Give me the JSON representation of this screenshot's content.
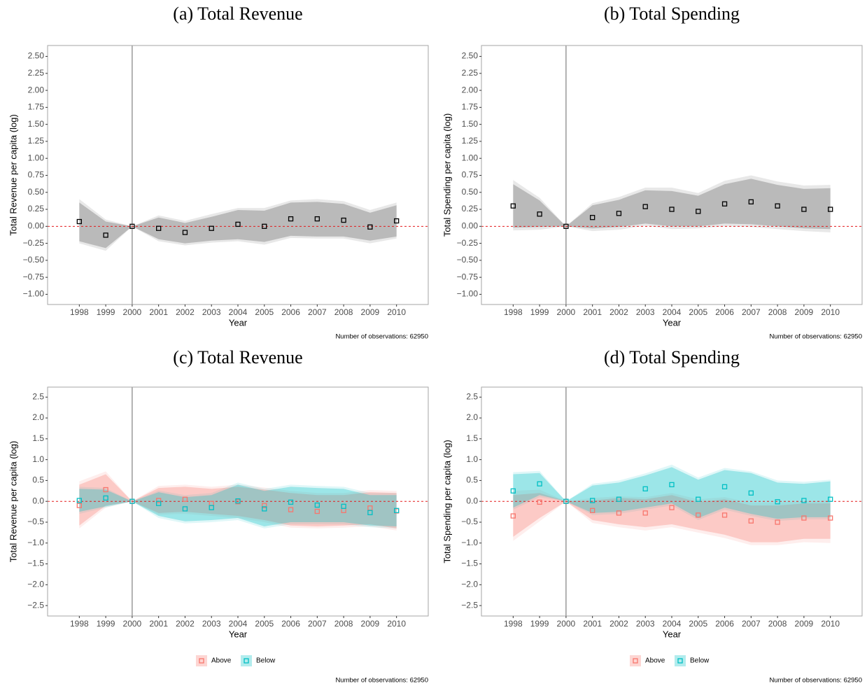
{
  "chart_data": [
    {
      "type": "scatter",
      "title": "(a) Total Revenue",
      "xlabel": "Year",
      "ylabel": "Total Revenue per capita (log)",
      "note": "Number of observations: 62950",
      "x": [
        1998,
        1999,
        2000,
        2001,
        2002,
        2003,
        2004,
        2005,
        2006,
        2007,
        2008,
        2009,
        2010
      ],
      "xlim": [
        1996.8,
        2011.2
      ],
      "xticks": [
        1998,
        1999,
        2000,
        2001,
        2002,
        2003,
        2004,
        2005,
        2006,
        2007,
        2008,
        2009,
        2010
      ],
      "ylim": [
        -1.15,
        2.66
      ],
      "yticks": [
        {
          "value": -1,
          "label": "−1.00"
        },
        {
          "value": -0.75,
          "label": "−0.75"
        },
        {
          "value": -0.5,
          "label": "−0.50"
        },
        {
          "value": -0.25,
          "label": "−0.25"
        },
        {
          "value": 0,
          "label": "0.00"
        },
        0.25,
        {
          "value": 0.5,
          "label": "0.50"
        },
        0.75,
        {
          "value": 1,
          "label": "1.00"
        },
        1.25,
        {
          "value": 1.5,
          "label": "1.50"
        },
        1.75,
        {
          "value": 2,
          "label": "2.00"
        },
        2.25,
        {
          "value": 2.5,
          "label": "2.50"
        }
      ],
      "vline": 2000,
      "hline": 0,
      "series": [
        {
          "color": "#000000",
          "fill": "#8c8c8c",
          "values": [
            0.07,
            -0.13,
            0,
            -0.03,
            -0.09,
            -0.03,
            0.03,
            0.0,
            0.11,
            0.11,
            0.09,
            -0.01,
            0.08
          ],
          "ci_low": [
            -0.22,
            -0.32,
            0,
            -0.19,
            -0.25,
            -0.21,
            -0.19,
            -0.23,
            -0.14,
            -0.15,
            -0.15,
            -0.21,
            -0.15
          ],
          "ci_high": [
            0.35,
            0.07,
            0,
            0.13,
            0.05,
            0.14,
            0.24,
            0.23,
            0.35,
            0.36,
            0.33,
            0.2,
            0.31
          ],
          "ci2_low": [
            -0.25,
            -0.36,
            0,
            -0.22,
            -0.28,
            -0.24,
            -0.22,
            -0.27,
            -0.17,
            -0.18,
            -0.18,
            -0.25,
            -0.18
          ],
          "ci2_high": [
            0.4,
            0.1,
            0,
            0.16,
            0.08,
            0.18,
            0.27,
            0.27,
            0.38,
            0.4,
            0.37,
            0.24,
            0.35
          ]
        }
      ]
    },
    {
      "type": "scatter",
      "title": "(b) Total Spending",
      "xlabel": "Year",
      "ylabel": "Total Spending per capita (log)",
      "note": "Number of observations: 62950",
      "x": [
        1998,
        1999,
        2000,
        2001,
        2002,
        2003,
        2004,
        2005,
        2006,
        2007,
        2008,
        2009,
        2010
      ],
      "xlim": [
        1996.8,
        2011.2
      ],
      "xticks": [
        1998,
        1999,
        2000,
        2001,
        2002,
        2003,
        2004,
        2005,
        2006,
        2007,
        2008,
        2009,
        2010
      ],
      "ylim": [
        -1.15,
        2.66
      ],
      "yticks": [
        {
          "value": -1,
          "label": "−1.00"
        },
        {
          "value": -0.75,
          "label": "−0.75"
        },
        {
          "value": -0.5,
          "label": "−0.50"
        },
        {
          "value": -0.25,
          "label": "−0.25"
        },
        {
          "value": 0,
          "label": "0.00"
        },
        0.25,
        {
          "value": 0.5,
          "label": "0.50"
        },
        0.75,
        {
          "value": 1,
          "label": "1.00"
        },
        1.25,
        {
          "value": 1.5,
          "label": "1.50"
        },
        1.75,
        {
          "value": 2,
          "label": "2.00"
        },
        2.25,
        {
          "value": 2.5,
          "label": "2.50"
        }
      ],
      "vline": 2000,
      "hline": 0,
      "series": [
        {
          "color": "#000000",
          "fill": "#8c8c8c",
          "values": [
            0.3,
            0.18,
            0,
            0.13,
            0.19,
            0.29,
            0.25,
            0.22,
            0.33,
            0.36,
            0.3,
            0.25,
            0.25
          ],
          "ci_low": [
            -0.02,
            -0.01,
            0,
            -0.03,
            -0.01,
            0.04,
            0.0,
            0.0,
            0.04,
            0.03,
            0.0,
            -0.03,
            -0.04
          ],
          "ci_high": [
            0.62,
            0.38,
            0,
            0.31,
            0.39,
            0.53,
            0.52,
            0.45,
            0.62,
            0.7,
            0.61,
            0.55,
            0.56
          ],
          "ci2_low": [
            -0.06,
            -0.05,
            0,
            -0.07,
            -0.05,
            0.01,
            -0.04,
            -0.03,
            0.0,
            -0.01,
            -0.04,
            -0.07,
            -0.09
          ],
          "ci2_high": [
            0.68,
            0.42,
            0,
            0.34,
            0.43,
            0.57,
            0.57,
            0.49,
            0.67,
            0.75,
            0.66,
            0.6,
            0.61
          ]
        }
      ]
    },
    {
      "type": "scatter",
      "title": "(c) Total Revenue",
      "xlabel": "Year",
      "ylabel": "Total Revenue per capita (log)",
      "note": "Number of observations: 62950",
      "x": [
        1998,
        1999,
        2000,
        2001,
        2002,
        2003,
        2004,
        2005,
        2006,
        2007,
        2008,
        2009,
        2010
      ],
      "xlim": [
        1996.8,
        2011.2
      ],
      "xticks": [
        1998,
        1999,
        2000,
        2001,
        2002,
        2003,
        2004,
        2005,
        2006,
        2007,
        2008,
        2009,
        2010
      ],
      "ylim": [
        -2.75,
        2.74
      ],
      "yticks": [
        {
          "value": -2.5,
          "label": "−2.5"
        },
        {
          "value": -2,
          "label": "−2.0"
        },
        {
          "value": -1.5,
          "label": "−1.5"
        },
        {
          "value": -1,
          "label": "−1.0"
        },
        {
          "value": -0.5,
          "label": "−0.5"
        },
        {
          "value": 0,
          "label": "0.0"
        },
        0.5,
        {
          "value": 1,
          "label": "1.0"
        },
        1.5,
        {
          "value": 2,
          "label": "2.0"
        },
        2.5
      ],
      "vline": 2000,
      "hline": 0,
      "legend": "bottom",
      "series": [
        {
          "name": "Above",
          "color": "#F8766D",
          "fill": "#F8766D",
          "values": [
            -0.1,
            0.28,
            0,
            0.02,
            0.05,
            -0.05,
            -0.01,
            -0.1,
            -0.2,
            -0.24,
            -0.22,
            -0.16,
            -0.23
          ],
          "ci_low": [
            -0.58,
            -0.1,
            0,
            -0.28,
            -0.25,
            -0.3,
            -0.35,
            -0.45,
            -0.58,
            -0.6,
            -0.58,
            -0.55,
            -0.65
          ],
          "ci_high": [
            0.4,
            0.65,
            0,
            0.32,
            0.35,
            0.3,
            0.35,
            0.28,
            0.2,
            0.15,
            0.15,
            0.22,
            0.2
          ],
          "ci2_low": [
            -0.65,
            -0.15,
            0,
            -0.32,
            -0.3,
            -0.35,
            -0.4,
            -0.5,
            -0.63,
            -0.65,
            -0.63,
            -0.6,
            -0.7
          ],
          "ci2_high": [
            0.48,
            0.72,
            0,
            0.37,
            0.4,
            0.35,
            0.4,
            0.33,
            0.25,
            0.2,
            0.2,
            0.27,
            0.25
          ]
        },
        {
          "name": "Below",
          "color": "#00BFC4",
          "fill": "#00BFC4",
          "values": [
            0.02,
            0.08,
            0,
            -0.05,
            -0.18,
            -0.15,
            0.01,
            -0.18,
            -0.02,
            -0.09,
            -0.12,
            -0.27,
            -0.22
          ],
          "ci_low": [
            -0.25,
            -0.12,
            0,
            -0.35,
            -0.48,
            -0.45,
            -0.4,
            -0.6,
            -0.5,
            -0.5,
            -0.5,
            -0.58,
            -0.6
          ],
          "ci_high": [
            0.3,
            0.28,
            0,
            0.22,
            0.1,
            0.15,
            0.4,
            0.25,
            0.35,
            0.32,
            0.3,
            0.15,
            0.15
          ],
          "ci2_low": [
            -0.3,
            -0.15,
            0,
            -0.4,
            -0.53,
            -0.5,
            -0.45,
            -0.65,
            -0.55,
            -0.55,
            -0.55,
            -0.62,
            -0.65
          ],
          "ci2_high": [
            0.35,
            0.32,
            0,
            0.26,
            0.15,
            0.2,
            0.45,
            0.3,
            0.4,
            0.37,
            0.35,
            0.2,
            0.2
          ]
        }
      ]
    },
    {
      "type": "scatter",
      "title": "(d) Total Spending",
      "xlabel": "Year",
      "ylabel": "Total Spending per capita (log)",
      "note": "Number of observations: 62950",
      "x": [
        1998,
        1999,
        2000,
        2001,
        2002,
        2003,
        2004,
        2005,
        2006,
        2007,
        2008,
        2009,
        2010
      ],
      "xlim": [
        1996.8,
        2011.2
      ],
      "xticks": [
        1998,
        1999,
        2000,
        2001,
        2002,
        2003,
        2004,
        2005,
        2006,
        2007,
        2008,
        2009,
        2010
      ],
      "ylim": [
        -2.75,
        2.74
      ],
      "yticks": [
        {
          "value": -2.5,
          "label": "−2.5"
        },
        {
          "value": -2,
          "label": "−2.0"
        },
        {
          "value": -1.5,
          "label": "−1.5"
        },
        {
          "value": -1,
          "label": "−1.0"
        },
        {
          "value": -0.5,
          "label": "−0.5"
        },
        {
          "value": 0,
          "label": "0.0"
        },
        0.5,
        {
          "value": 1,
          "label": "1.0"
        },
        1.5,
        {
          "value": 2,
          "label": "2.0"
        },
        2.5
      ],
      "vline": 2000,
      "hline": 0,
      "legend": "bottom",
      "series": [
        {
          "name": "Above",
          "color": "#F8766D",
          "fill": "#F8766D",
          "values": [
            -0.35,
            -0.02,
            0,
            -0.22,
            -0.28,
            -0.28,
            -0.15,
            -0.33,
            -0.33,
            -0.47,
            -0.5,
            -0.4,
            -0.4
          ],
          "ci_low": [
            -0.85,
            -0.4,
            0,
            -0.45,
            -0.55,
            -0.62,
            -0.55,
            -0.68,
            -0.8,
            -0.98,
            -0.98,
            -0.9,
            -0.9
          ],
          "ci_high": [
            0.15,
            0.2,
            0,
            0.02,
            0.08,
            0.05,
            0.15,
            -0.02,
            0.05,
            -0.1,
            -0.1,
            -0.05,
            -0.05
          ],
          "ci2_low": [
            -0.95,
            -0.48,
            0,
            -0.52,
            -0.62,
            -0.7,
            -0.62,
            -0.75,
            -0.88,
            -1.05,
            -1.05,
            -0.98,
            -1.0
          ],
          "ci2_high": [
            0.25,
            0.28,
            0,
            0.08,
            0.12,
            0.1,
            0.2,
            0.05,
            0.1,
            -0.03,
            -0.03,
            0.0,
            0.02
          ]
        },
        {
          "name": "Below",
          "color": "#00BFC4",
          "fill": "#00BFC4",
          "values": [
            0.25,
            0.42,
            0,
            0.02,
            0.05,
            0.3,
            0.4,
            0.05,
            0.35,
            0.2,
            -0.01,
            0.02,
            0.05
          ],
          "ci_low": [
            -0.15,
            0.15,
            0,
            -0.28,
            -0.25,
            -0.15,
            -0.05,
            -0.4,
            -0.15,
            -0.3,
            -0.42,
            -0.38,
            -0.38
          ],
          "ci_high": [
            0.65,
            0.68,
            0,
            0.38,
            0.45,
            0.62,
            0.82,
            0.52,
            0.75,
            0.68,
            0.45,
            0.42,
            0.48
          ],
          "ci2_low": [
            -0.2,
            0.1,
            0,
            -0.33,
            -0.3,
            -0.2,
            -0.1,
            -0.45,
            -0.2,
            -0.35,
            -0.47,
            -0.43,
            -0.43
          ],
          "ci2_high": [
            0.7,
            0.73,
            0,
            0.42,
            0.5,
            0.67,
            0.88,
            0.57,
            0.8,
            0.72,
            0.5,
            0.47,
            0.52
          ]
        }
      ]
    }
  ]
}
